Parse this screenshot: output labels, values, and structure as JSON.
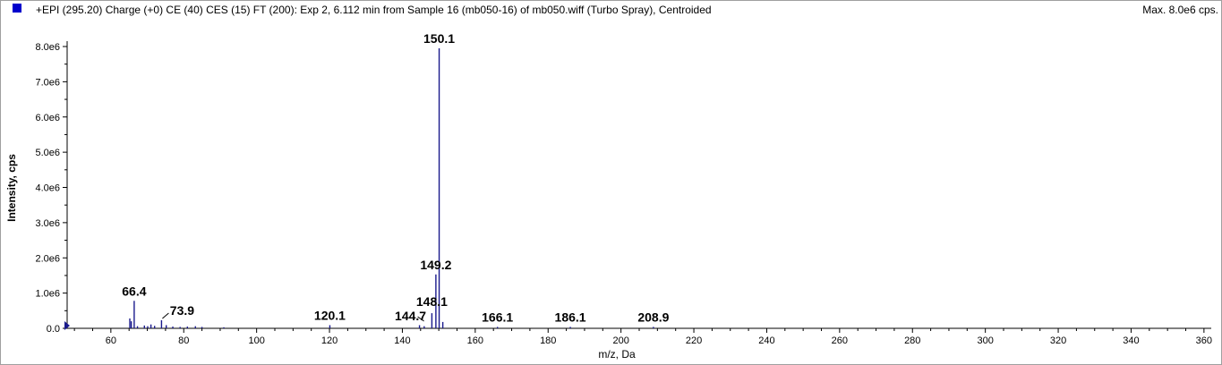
{
  "header": {
    "title": "+EPI (295.20) Charge (+0) CE (40) CES (15) FT (200): Exp 2, 6.112 min from Sample 16 (mb050-16) of mb050.wiff (Turbo Spray), Centroided",
    "max_label": "Max. 8.0e6 cps."
  },
  "colors": {
    "series": "#1a1a8c",
    "marker": "#0000cc",
    "axis": "#000000"
  },
  "chart_data": {
    "type": "bar",
    "xlabel": "m/z, Da",
    "ylabel": "Intensity, cps",
    "xlim": [
      48,
      362
    ],
    "ylim": [
      0,
      8000000
    ],
    "x_ticks": [
      60,
      80,
      100,
      120,
      140,
      160,
      180,
      200,
      220,
      240,
      260,
      280,
      300,
      320,
      340,
      360
    ],
    "y_ticks": [
      {
        "v": 0,
        "label": "0.0"
      },
      {
        "v": 1000000,
        "label": "1.0e6"
      },
      {
        "v": 2000000,
        "label": "2.0e6"
      },
      {
        "v": 3000000,
        "label": "3.0e6"
      },
      {
        "v": 4000000,
        "label": "4.0e6"
      },
      {
        "v": 5000000,
        "label": "5.0e6"
      },
      {
        "v": 6000000,
        "label": "6.0e6"
      },
      {
        "v": 7000000,
        "label": "7.0e6"
      },
      {
        "v": 8000000,
        "label": "8.0e6"
      }
    ],
    "peaks": [
      {
        "x": 65.2,
        "y": 280000
      },
      {
        "x": 65.6,
        "y": 200000
      },
      {
        "x": 66.4,
        "y": 780000
      },
      {
        "x": 67.3,
        "y": 60000
      },
      {
        "x": 69.2,
        "y": 80000
      },
      {
        "x": 70.1,
        "y": 60000
      },
      {
        "x": 71.0,
        "y": 110000
      },
      {
        "x": 72.0,
        "y": 70000
      },
      {
        "x": 73.9,
        "y": 230000
      },
      {
        "x": 75.2,
        "y": 90000
      },
      {
        "x": 77.0,
        "y": 50000
      },
      {
        "x": 79.0,
        "y": 40000
      },
      {
        "x": 81.0,
        "y": 50000
      },
      {
        "x": 83.2,
        "y": 60000
      },
      {
        "x": 85.0,
        "y": 40000
      },
      {
        "x": 91.0,
        "y": 30000
      },
      {
        "x": 120.1,
        "y": 90000
      },
      {
        "x": 144.7,
        "y": 90000
      },
      {
        "x": 146.0,
        "y": 60000
      },
      {
        "x": 148.1,
        "y": 430000
      },
      {
        "x": 149.2,
        "y": 1530000
      },
      {
        "x": 150.1,
        "y": 7950000
      },
      {
        "x": 151.1,
        "y": 180000
      },
      {
        "x": 166.1,
        "y": 40000
      },
      {
        "x": 186.1,
        "y": 40000
      },
      {
        "x": 208.9,
        "y": 40000
      }
    ],
    "labels": [
      {
        "text": "150.1",
        "x": 150.1,
        "y": 7950000
      },
      {
        "text": "149.2",
        "x": 149.2,
        "y": 1530000
      },
      {
        "text": "148.1",
        "x": 148.1,
        "y": 430000
      },
      {
        "text": "144.7",
        "x": 144.7,
        "y": 90000
      },
      {
        "text": "66.4",
        "x": 66.4,
        "y": 780000
      },
      {
        "text": "73.9",
        "x": 73.9,
        "y": 230000
      },
      {
        "text": "120.1",
        "x": 120.1,
        "y": 90000
      },
      {
        "text": "166.1",
        "x": 166.1,
        "y": 40000
      },
      {
        "text": "186.1",
        "x": 186.1,
        "y": 40000
      },
      {
        "text": "208.9",
        "x": 208.9,
        "y": 40000
      }
    ]
  }
}
